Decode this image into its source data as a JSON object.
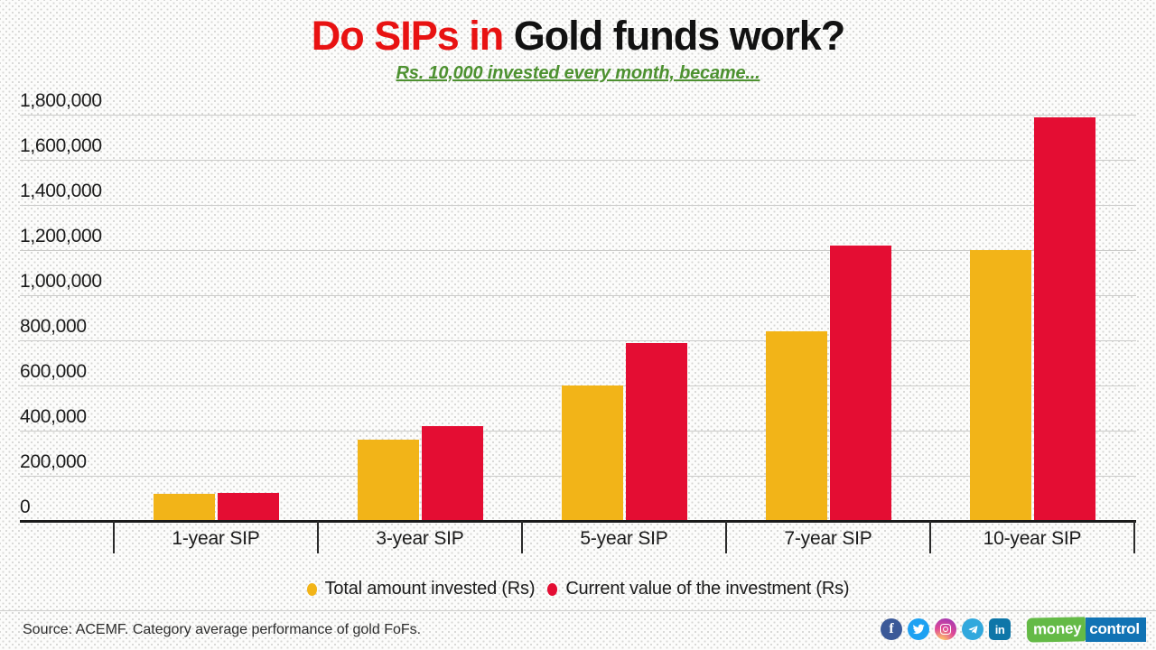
{
  "title": {
    "highlight": "Do SIPs in",
    "rest": " Gold funds work?"
  },
  "subtitle": "Rs. 10,000 invested every month, became...",
  "chart_data": {
    "type": "bar",
    "title": "Do SIPs in Gold funds work?",
    "subtitle": "Rs. 10,000 invested every month, became...",
    "categories": [
      "1-year SIP",
      "3-year SIP",
      "5-year SIP",
      "7-year SIP",
      "10-year SIP"
    ],
    "series": [
      {
        "name": "Total amount invested (Rs)",
        "color": "#f2b418",
        "values": [
          120000,
          360000,
          600000,
          840000,
          1200000
        ]
      },
      {
        "name": "Current value of the investment (Rs)",
        "color": "#e40d33",
        "values": [
          125000,
          420000,
          790000,
          1220000,
          1790000
        ]
      }
    ],
    "ylim": [
      0,
      1800000
    ],
    "ytick_values": [
      0,
      200000,
      400000,
      600000,
      800000,
      1000000,
      1200000,
      1400000,
      1600000,
      1800000
    ],
    "ytick_labels": [
      "0",
      "200,000",
      "400,000",
      "600,000",
      "800,000",
      "1,000,000",
      "1,200,000",
      "1,400,000",
      "1,600,000",
      "1,800,000"
    ],
    "grid": true,
    "legend_position": "bottom"
  },
  "footer": {
    "source": "Source: ACEMF. Category average performance of gold FoFs.",
    "social_icons": [
      "facebook",
      "twitter",
      "instagram",
      "telegram",
      "linkedin"
    ],
    "linkedin_glyph": "in",
    "facebook_glyph": "f",
    "logo": {
      "money": "money",
      "control": "control"
    }
  },
  "colors": {
    "title_red": "#e81212",
    "title_black": "#121212",
    "subtitle_green": "#4d9130",
    "bar_yellow": "#f2b418",
    "bar_red": "#e40d33",
    "logo_green": "#64ba46",
    "logo_blue": "#1173b4"
  }
}
